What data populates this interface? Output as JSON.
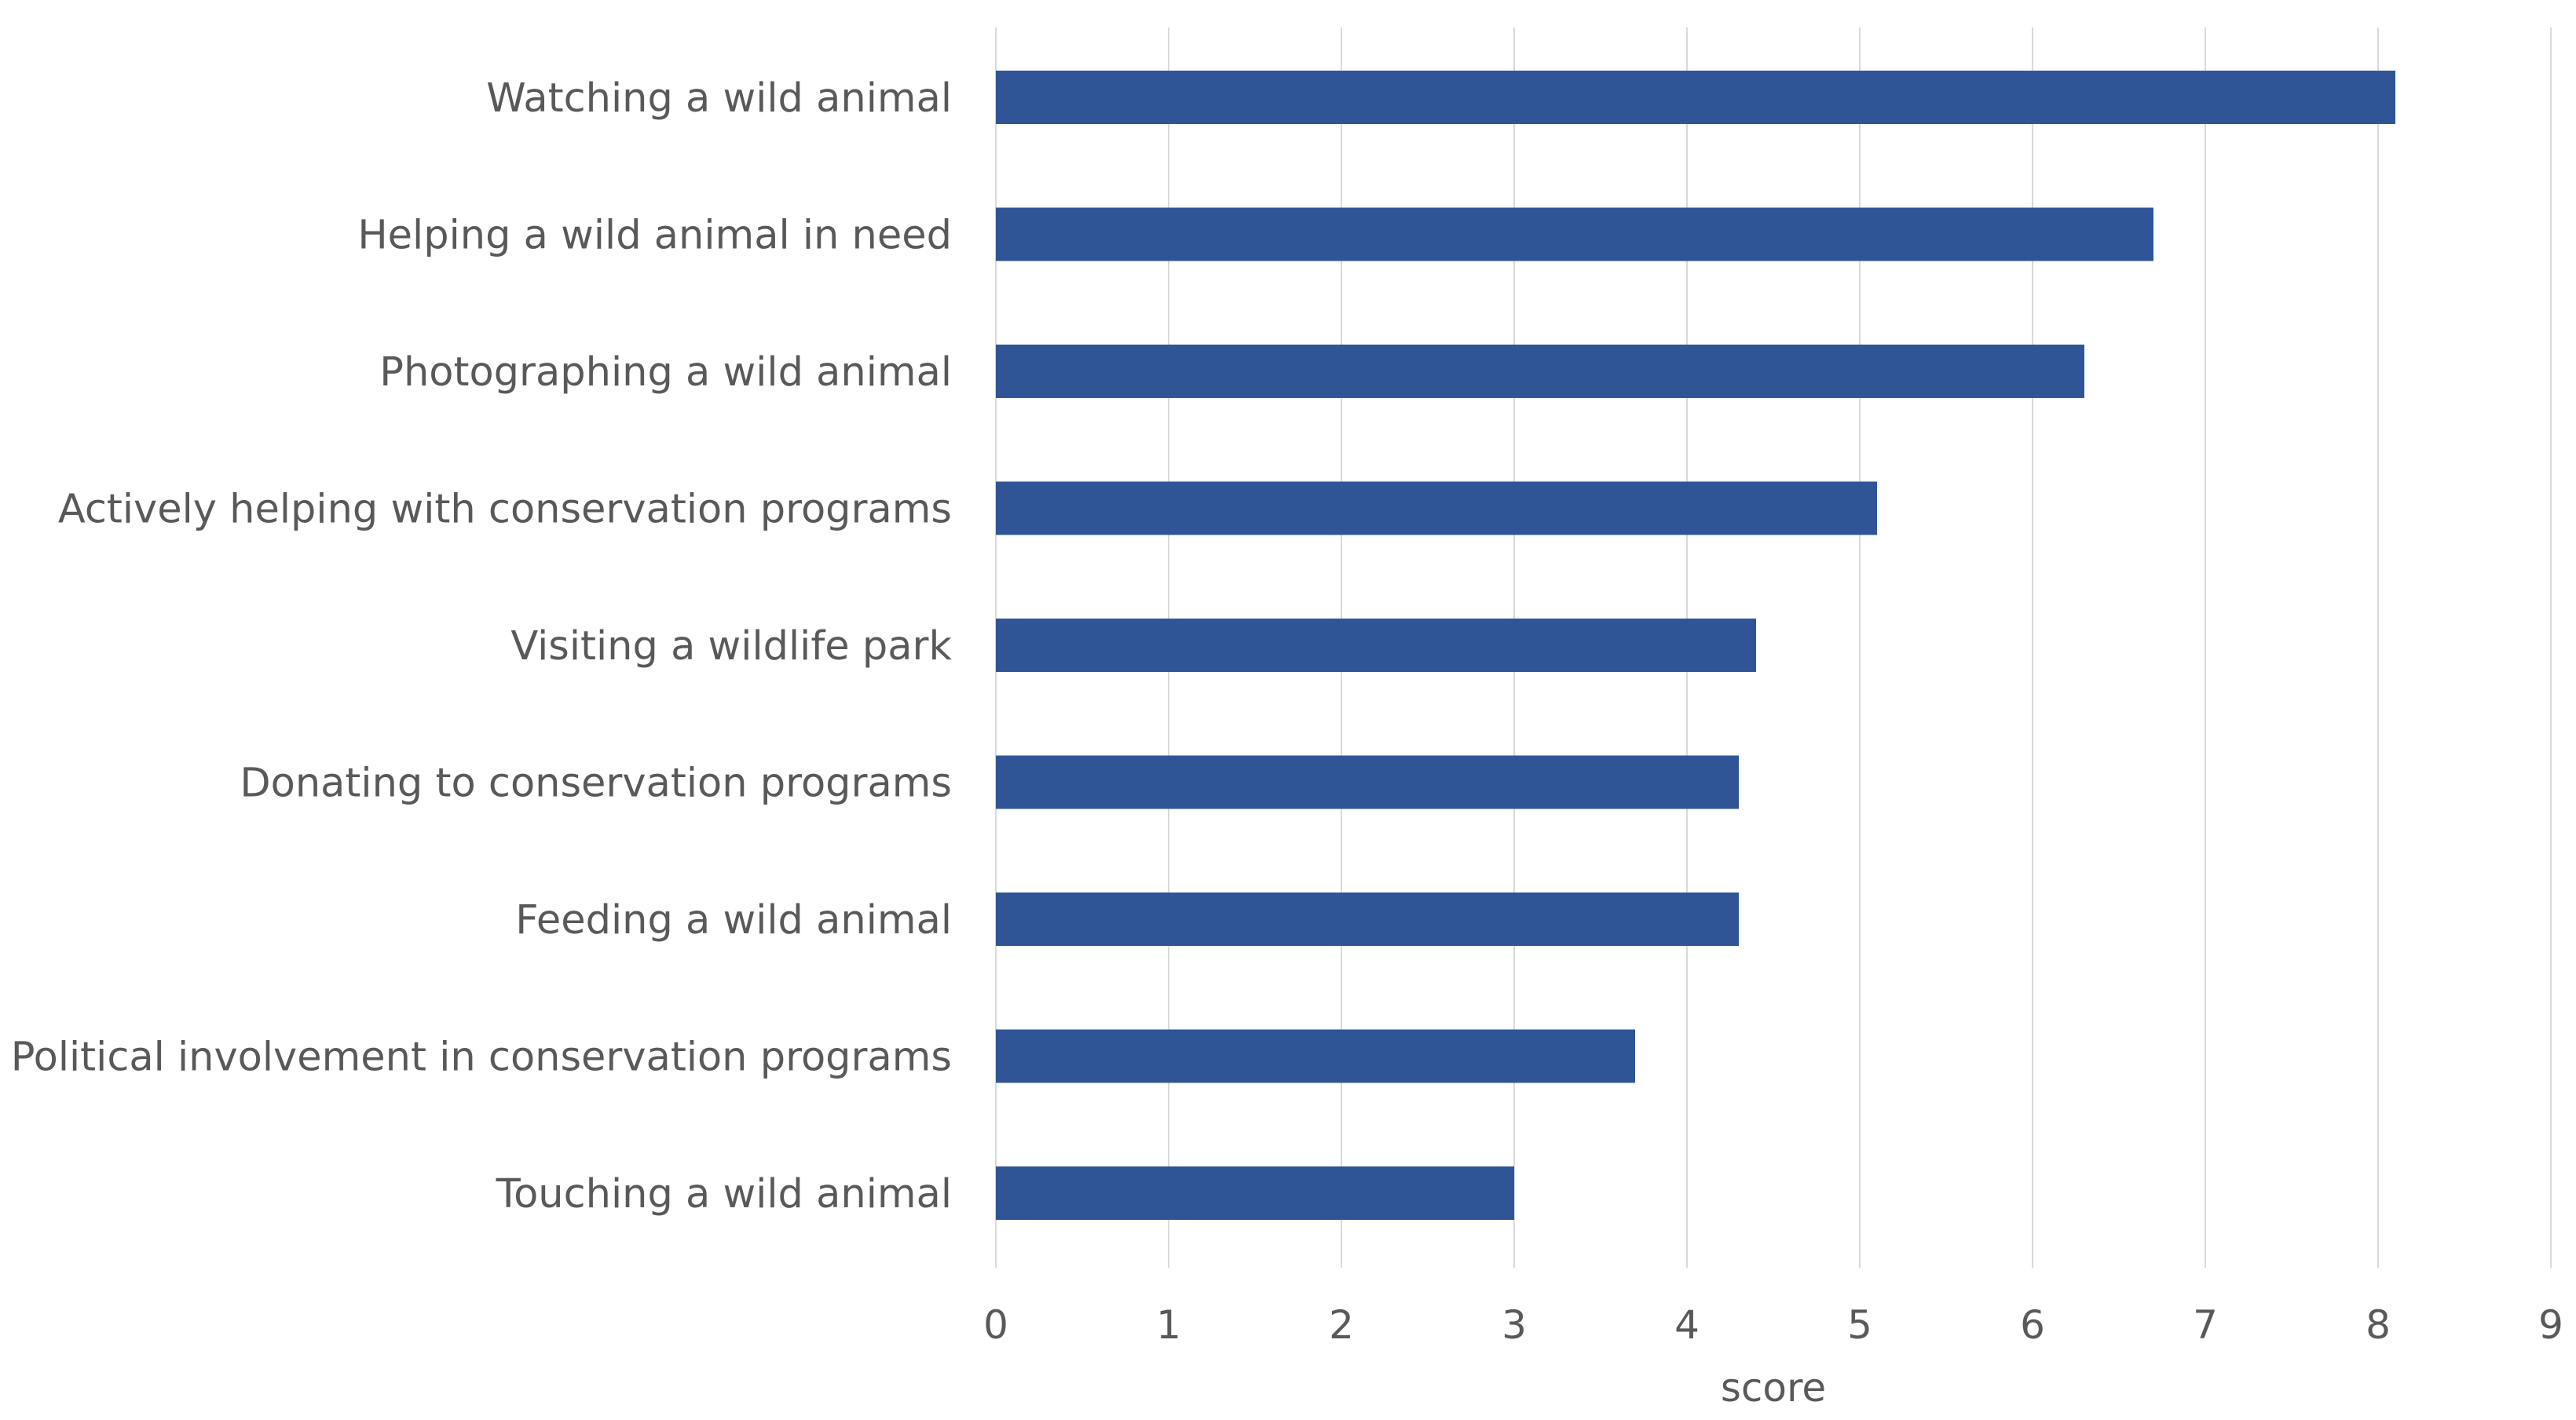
{
  "chart_data": {
    "type": "bar",
    "orientation": "horizontal",
    "title": "",
    "xlabel": "score",
    "ylabel": "",
    "xlim": [
      0,
      9
    ],
    "xticks": [
      0,
      1,
      2,
      3,
      4,
      5,
      6,
      7,
      8,
      9
    ],
    "grid": true,
    "legend": "none",
    "categories": [
      "Watching a wild animal",
      "Helping a wild animal in need",
      "Photographing a wild animal",
      "Actively helping with conservation programs",
      "Visiting a wildlife park",
      "Donating to conservation programs",
      "Feeding a wild animal",
      "Political involvement in conservation programs",
      "Touching a wild animal"
    ],
    "values": [
      8.1,
      6.7,
      6.3,
      5.1,
      4.4,
      4.3,
      4.3,
      3.7,
      3.0
    ],
    "colors": {
      "bar": "#2F5597",
      "grid": "#D9D9D9",
      "text": "#595959"
    }
  }
}
